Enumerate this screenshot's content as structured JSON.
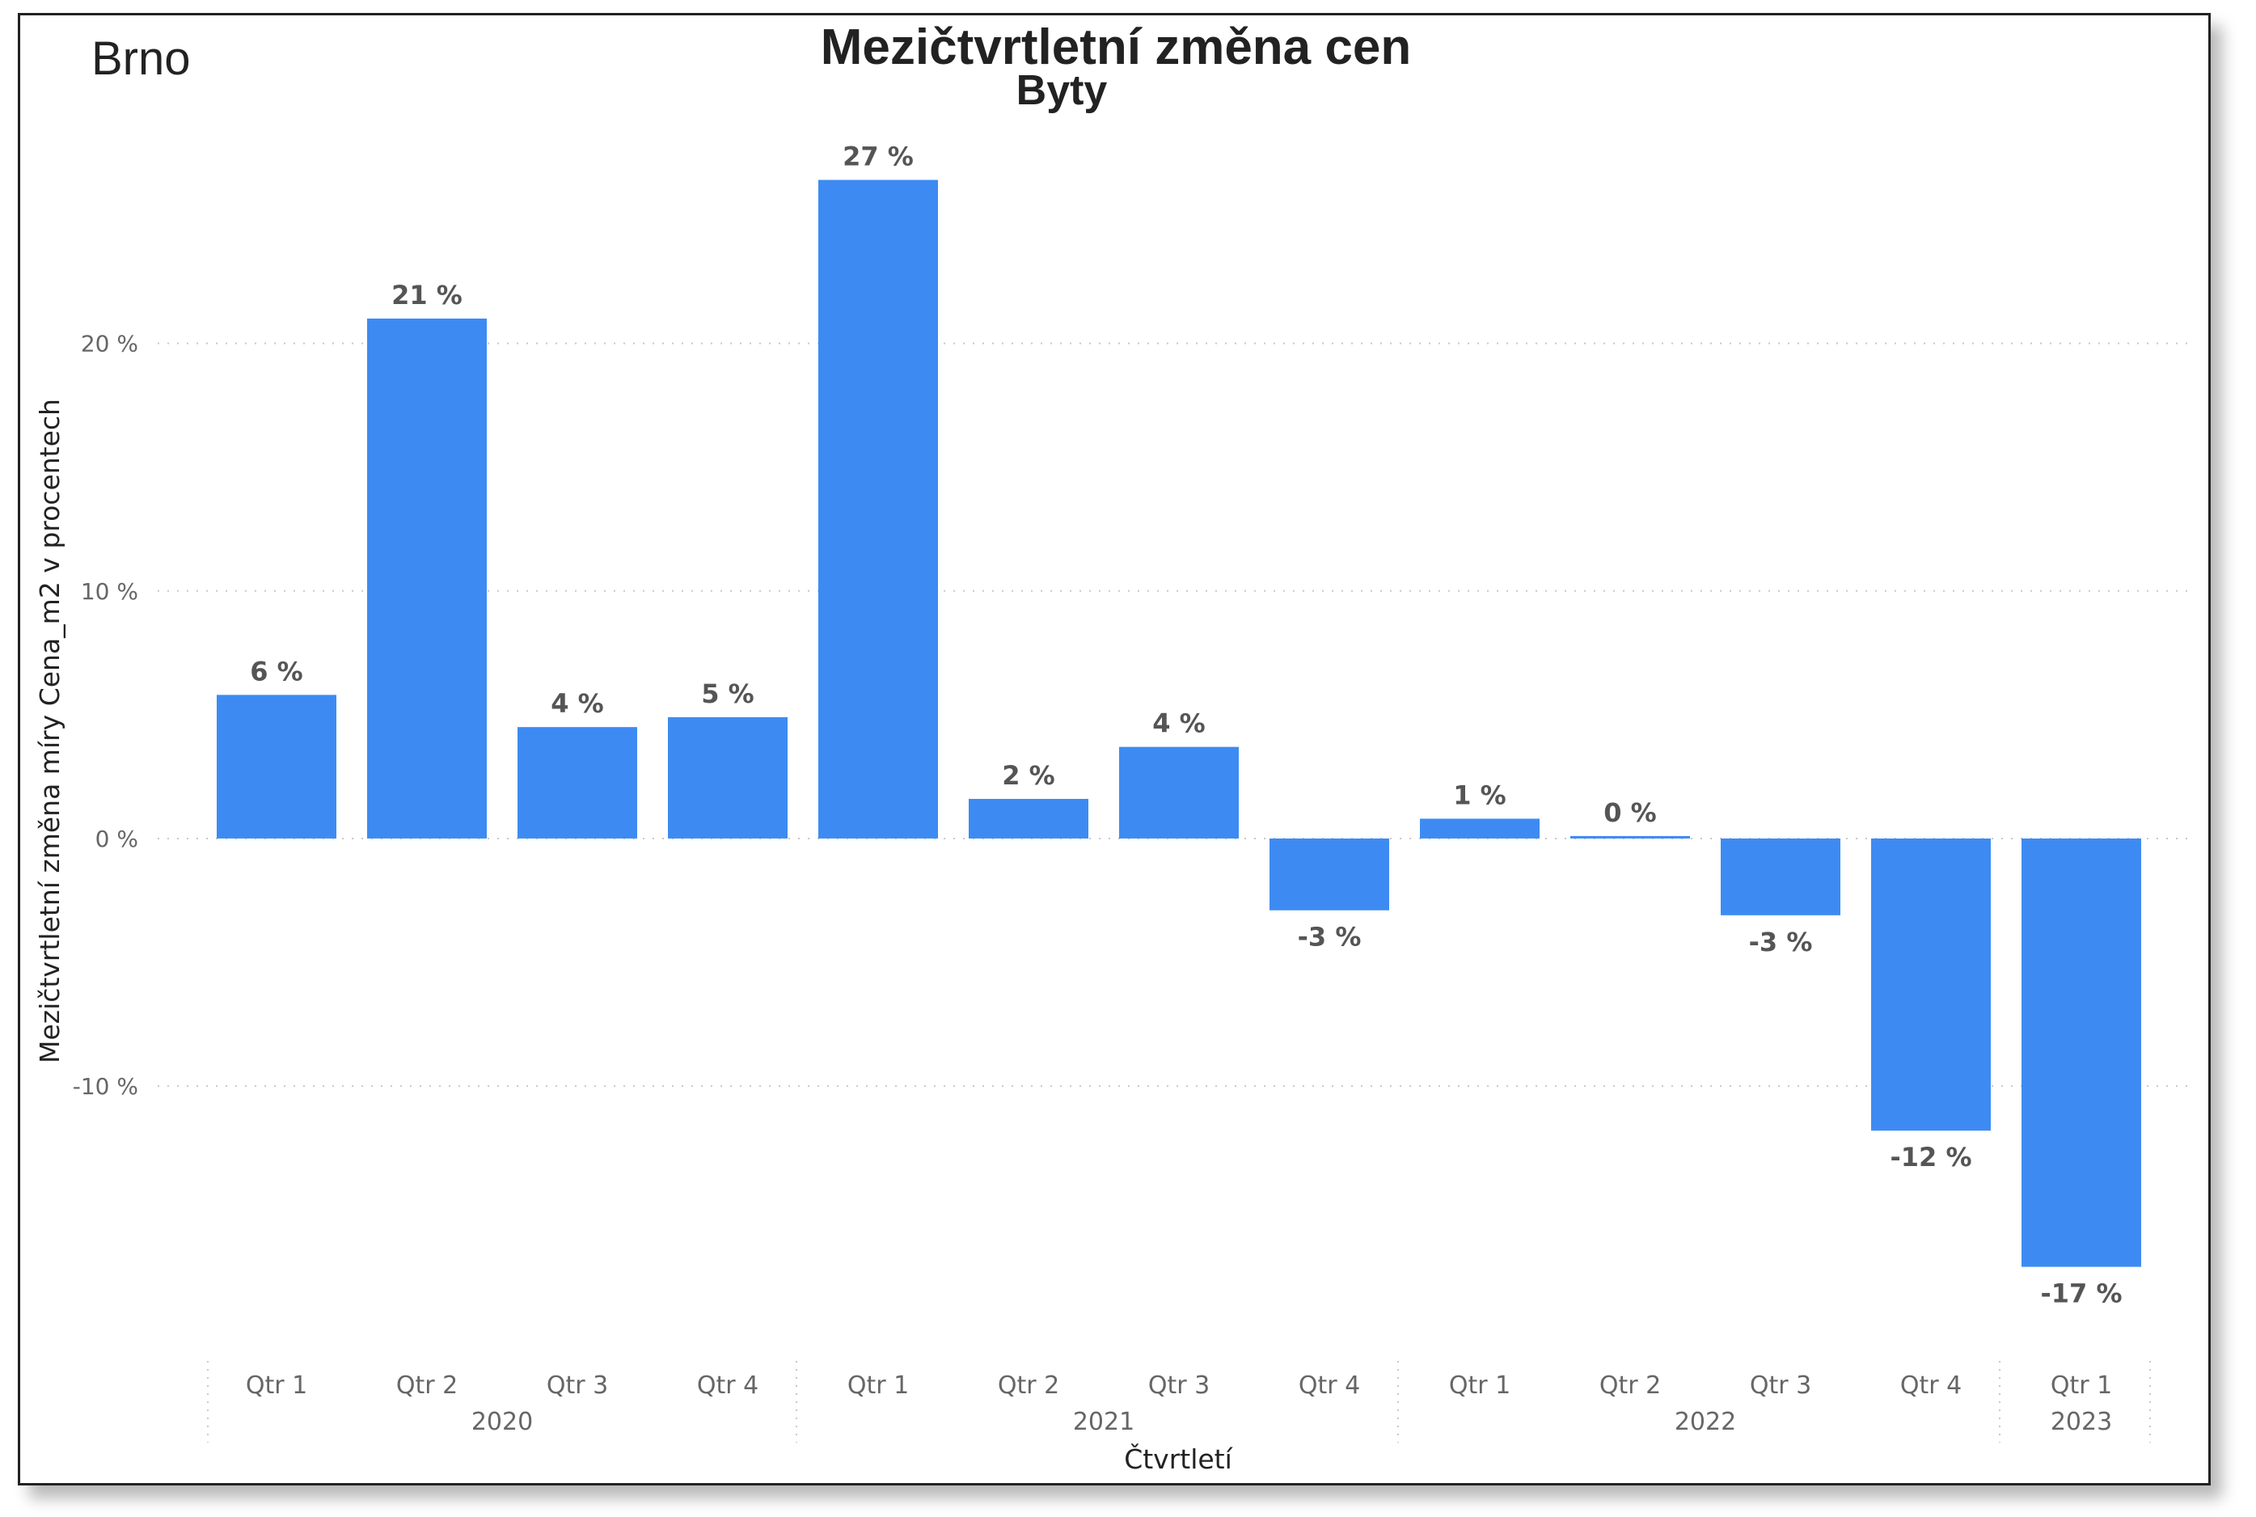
{
  "city": "Brno",
  "chart_data": {
    "type": "bar",
    "title": "Mezičtvrtletní změna cen",
    "subtitle": "Byty",
    "xlabel": "Čtvrtletí",
    "ylabel": "Mezičtvrtletní změna míry Cena_m2 v procentech",
    "ylim": [
      -19.5,
      29
    ],
    "yticks": [
      -10,
      0,
      10,
      20
    ],
    "ytick_labels": [
      "-10 %",
      "0 %",
      "10 %",
      "20 %"
    ],
    "grid": true,
    "bar_color": "#3d8bf2",
    "categories": [
      "Qtr 1",
      "Qtr 2",
      "Qtr 3",
      "Qtr 4",
      "Qtr 1",
      "Qtr 2",
      "Qtr 3",
      "Qtr 4",
      "Qtr 1",
      "Qtr 2",
      "Qtr 3",
      "Qtr 4",
      "Qtr 1"
    ],
    "years": [
      {
        "label": "2020",
        "count": 4
      },
      {
        "label": "2021",
        "count": 4
      },
      {
        "label": "2022",
        "count": 4
      },
      {
        "label": "2023",
        "count": 1
      }
    ],
    "values": [
      5.8,
      21.0,
      4.5,
      4.9,
      26.6,
      1.6,
      3.7,
      -2.9,
      0.8,
      0.1,
      -3.1,
      -11.8,
      -17.3
    ],
    "data_labels": [
      "6 %",
      "21 %",
      "4 %",
      "5 %",
      "27 %",
      "2 %",
      "4 %",
      "-3 %",
      "1 %",
      "0 %",
      "-3 %",
      "-12 %",
      "-17 %"
    ]
  }
}
